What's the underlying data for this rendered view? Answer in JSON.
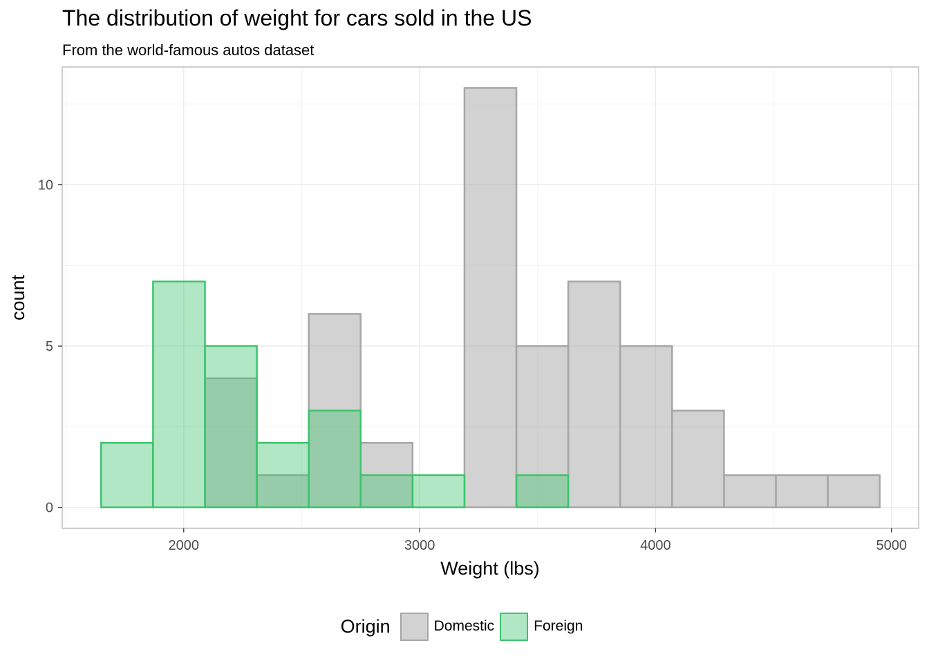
{
  "chart_data": {
    "type": "bar",
    "title": "The distribution of weight for cars sold in the US",
    "subtitle": "From the world-famous autos dataset",
    "xlabel": "Weight (lbs)",
    "ylabel": "count",
    "xlim": [
      1485,
      5115
    ],
    "ylim": [
      -0.65,
      13.65
    ],
    "xticks": [
      2000,
      3000,
      4000,
      5000
    ],
    "yticks": [
      0,
      5,
      10
    ],
    "grid": true,
    "legend_position": "bottom",
    "legend_title": "Origin",
    "bin_width": 220,
    "bin_centers": [
      1760,
      1980,
      2200,
      2420,
      2640,
      2860,
      3080,
      3300,
      3520,
      3740,
      3960,
      4180,
      4400,
      4620,
      4840
    ],
    "series": [
      {
        "name": "Domestic",
        "fill": "#a6a6a6",
        "stroke": "#a6a6a6",
        "values": [
          0,
          0,
          4,
          1,
          6,
          2,
          0,
          13,
          5,
          7,
          5,
          3,
          1,
          1,
          1
        ]
      },
      {
        "name": "Foreign",
        "fill": "#3cc46c",
        "stroke": "#3cc46c",
        "values": [
          2,
          7,
          5,
          2,
          3,
          1,
          1,
          0,
          1,
          0,
          0,
          0,
          0,
          0,
          0
        ]
      }
    ]
  }
}
